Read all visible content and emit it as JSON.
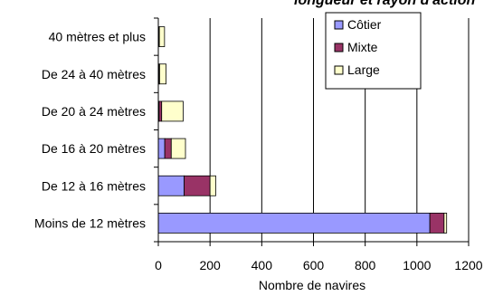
{
  "chart_data": {
    "type": "bar",
    "orientation": "horizontal",
    "stacked": true,
    "title": "longueur et rayon d'action",
    "xlabel": "Nombre de navires",
    "ylabel": "",
    "xlim": [
      0,
      1200
    ],
    "xticks": [
      "0",
      "200",
      "400",
      "600",
      "800",
      "1000",
      "1200"
    ],
    "categories": [
      "Moins de 12 mètres",
      "De 12 à 16 mètres",
      "De 16 à 20 mètres",
      "De 20 à 24 mètres",
      "De 24 à 40 mètres",
      "40 mètres et plus"
    ],
    "series": [
      {
        "name": "Côtier",
        "color": "#9999ff",
        "values": [
          1050,
          100,
          25,
          3,
          2,
          2
        ]
      },
      {
        "name": "Mixte",
        "color": "#993366",
        "values": [
          55,
          100,
          25,
          10,
          3,
          2
        ]
      },
      {
        "name": "Large",
        "color": "#ffffcc",
        "values": [
          10,
          22,
          55,
          83,
          25,
          20
        ]
      }
    ],
    "grid": "vertical",
    "legend_position": "top-right"
  }
}
